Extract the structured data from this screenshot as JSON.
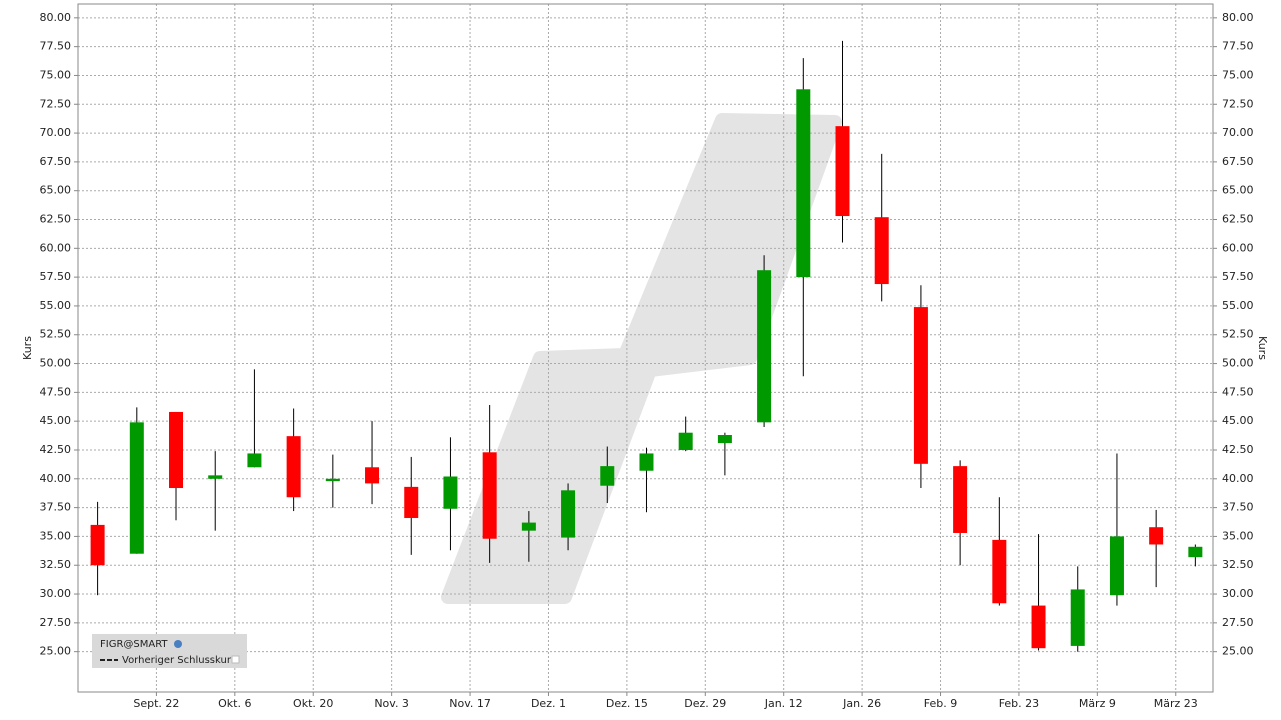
{
  "chart_data": {
    "type": "candlestick",
    "categories": [
      null,
      null,
      null,
      null,
      null,
      null,
      null,
      null,
      null,
      null,
      null,
      null,
      null,
      null,
      null,
      null,
      null,
      null,
      null,
      null,
      null,
      null,
      null,
      null,
      null,
      null,
      null,
      null,
      null
    ],
    "open": [
      36.0,
      33.5,
      45.8,
      40.0,
      41.0,
      43.7,
      39.8,
      41.0,
      39.3,
      37.4,
      42.3,
      35.5,
      34.9,
      39.4,
      40.7,
      42.5,
      43.1,
      44.9,
      57.5,
      70.6,
      62.7,
      54.9,
      41.1,
      34.7,
      29.0,
      25.5,
      29.9,
      35.8,
      33.2
    ],
    "high": [
      38.0,
      46.2,
      45.8,
      42.4,
      49.5,
      46.1,
      42.1,
      45.0,
      41.9,
      43.6,
      46.4,
      37.2,
      39.6,
      42.8,
      42.7,
      45.4,
      44.0,
      59.4,
      76.5,
      78.0,
      68.2,
      56.8,
      41.6,
      38.4,
      35.2,
      32.4,
      42.2,
      37.3,
      34.3
    ],
    "low": [
      29.9,
      33.5,
      36.4,
      35.5,
      41.0,
      37.2,
      37.5,
      37.8,
      33.4,
      33.8,
      32.7,
      32.8,
      33.8,
      37.9,
      37.1,
      42.4,
      40.3,
      44.5,
      48.9,
      60.5,
      55.4,
      39.2,
      32.5,
      29.0,
      25.1,
      25.0,
      29.0,
      30.6,
      32.4
    ],
    "close": [
      32.5,
      44.9,
      39.2,
      40.3,
      42.2,
      38.4,
      40.0,
      39.6,
      36.6,
      40.2,
      34.8,
      36.2,
      39.0,
      41.1,
      42.2,
      44.0,
      43.8,
      58.1,
      73.8,
      62.8,
      56.9,
      41.3,
      35.3,
      29.2,
      25.3,
      30.4,
      35.0,
      34.3,
      34.1
    ],
    "up_color": "#009900",
    "down_color": "#ff0000",
    "y_label": "Kurs",
    "legend": [
      "FIGR@SMART",
      "Vorheriger Schlusskurs"
    ],
    "xlim": [
      -0.5,
      28.45
    ],
    "xticks": [
      {
        "value": 1.5,
        "label": "Sept. 22"
      },
      {
        "value": 3.5,
        "label": "Okt. 6"
      },
      {
        "value": 5.5,
        "label": "Okt. 20"
      },
      {
        "value": 7.5,
        "label": "Nov. 3"
      },
      {
        "value": 9.5,
        "label": "Nov. 17"
      },
      {
        "value": 11.5,
        "label": "Dez. 1"
      },
      {
        "value": 13.5,
        "label": "Dez. 15"
      },
      {
        "value": 15.5,
        "label": "Dez. 29"
      },
      {
        "value": 17.5,
        "label": "Jan. 12"
      },
      {
        "value": 19.5,
        "label": "Jan. 26"
      },
      {
        "value": 21.5,
        "label": "Feb. 9"
      },
      {
        "value": 23.5,
        "label": "Feb. 23"
      },
      {
        "value": 25.5,
        "label": "März 9"
      },
      {
        "value": 27.5,
        "label": "März 23"
      }
    ],
    "ylim": [
      21.5,
      81.2
    ],
    "yticks": [
      {
        "value": 25,
        "label": "25.00"
      },
      {
        "value": 27.5,
        "label": "27.50"
      },
      {
        "value": 30,
        "label": "30.00"
      },
      {
        "value": 32.5,
        "label": "32.50"
      },
      {
        "value": 35,
        "label": "35.00"
      },
      {
        "value": 37.5,
        "label": "37.50"
      },
      {
        "value": 40,
        "label": "40.00"
      },
      {
        "value": 42.5,
        "label": "42.50"
      },
      {
        "value": 45,
        "label": "45.00"
      },
      {
        "value": 47.5,
        "label": "47.50"
      },
      {
        "value": 50,
        "label": "50.00"
      },
      {
        "value": 52.5,
        "label": "52.50"
      },
      {
        "value": 55,
        "label": "55.00"
      },
      {
        "value": 57.5,
        "label": "57.50"
      },
      {
        "value": 60,
        "label": "60.00"
      },
      {
        "value": 62.5,
        "label": "62.50"
      },
      {
        "value": 65,
        "label": "65.00"
      },
      {
        "value": 67.5,
        "label": "67.50"
      },
      {
        "value": 70,
        "label": "70.00"
      },
      {
        "value": 72.5,
        "label": "72.50"
      },
      {
        "value": 75,
        "label": "75.00"
      },
      {
        "value": 77.5,
        "label": "77.50"
      },
      {
        "value": 80,
        "label": "80.00"
      }
    ],
    "grid": true
  }
}
